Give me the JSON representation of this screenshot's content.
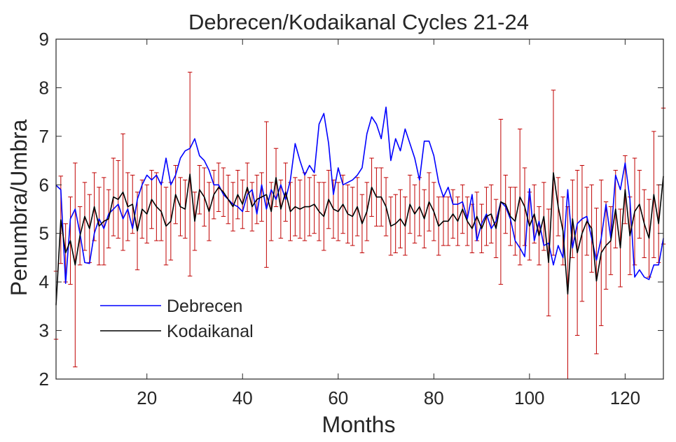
{
  "chart_data": {
    "type": "line",
    "title": "Debrecen/Kodaikanal Cycles 21-24",
    "xlabel": "Months",
    "ylabel": "Penumbra/Umbra",
    "xlim": [
      1,
      128
    ],
    "ylim": [
      2,
      9
    ],
    "xticks": [
      20,
      40,
      60,
      80,
      100,
      120
    ],
    "yticks": [
      2,
      3,
      4,
      5,
      6,
      7,
      8,
      9
    ],
    "legend_position": "lower-left",
    "colors": {
      "debrecen": "#0000ff",
      "kodaikanal": "#000000",
      "errorbar": "#c00000"
    },
    "series": [
      {
        "name": "Debrecen",
        "color": "#0000ff",
        "x": [
          1,
          2,
          3,
          4,
          5,
          6,
          7,
          8,
          9,
          10,
          11,
          12,
          13,
          14,
          15,
          16,
          17,
          18,
          19,
          20,
          21,
          22,
          23,
          24,
          25,
          26,
          27,
          28,
          29,
          30,
          31,
          32,
          33,
          34,
          35,
          36,
          37,
          38,
          39,
          40,
          41,
          42,
          43,
          44,
          45,
          46,
          47,
          48,
          49,
          50,
          51,
          52,
          53,
          54,
          55,
          56,
          57,
          58,
          59,
          60,
          61,
          62,
          63,
          64,
          65,
          66,
          67,
          68,
          69,
          70,
          71,
          72,
          73,
          74,
          75,
          76,
          77,
          78,
          79,
          80,
          81,
          82,
          83,
          84,
          85,
          86,
          87,
          88,
          89,
          90,
          91,
          92,
          93,
          94,
          95,
          96,
          97,
          98,
          99,
          100,
          101,
          102,
          103,
          104,
          105,
          106,
          107,
          108,
          109,
          110,
          111,
          112,
          113,
          114,
          115,
          116,
          117,
          118,
          119,
          120,
          121,
          122,
          123,
          124,
          125,
          126,
          127,
          128
        ],
        "values": [
          5.99,
          5.9,
          3.97,
          5.3,
          5.5,
          5.0,
          4.4,
          4.38,
          5.0,
          5.3,
          5.1,
          5.4,
          5.5,
          5.6,
          5.3,
          5.5,
          5.1,
          5.7,
          6.0,
          6.2,
          6.1,
          6.2,
          6.0,
          6.55,
          6.0,
          6.2,
          6.55,
          6.7,
          6.75,
          6.95,
          6.6,
          6.5,
          6.3,
          6.0,
          6.0,
          5.8,
          5.7,
          5.6,
          5.55,
          5.45,
          5.8,
          5.9,
          5.4,
          6.0,
          5.5,
          5.9,
          5.7,
          6.0,
          5.7,
          6.1,
          6.85,
          6.5,
          6.2,
          6.4,
          6.25,
          7.25,
          7.47,
          6.85,
          5.8,
          6.35,
          6.0,
          6.05,
          6.1,
          6.2,
          6.35,
          7.05,
          7.4,
          7.25,
          6.95,
          7.6,
          6.5,
          6.95,
          6.7,
          7.15,
          6.85,
          6.55,
          6.1,
          6.9,
          6.9,
          6.6,
          6.05,
          5.75,
          5.95,
          5.6,
          5.6,
          5.65,
          5.3,
          5.8,
          4.85,
          5.2,
          5.4,
          5.1,
          5.25,
          5.65,
          5.55,
          5.3,
          4.85,
          4.7,
          4.52,
          5.92,
          4.85,
          5.25,
          4.75,
          4.8,
          4.35,
          4.75,
          4.5,
          5.9,
          4.7,
          5.2,
          5.3,
          5.35,
          4.9,
          4.45,
          4.9,
          5.6,
          4.9,
          6.2,
          5.9,
          6.45,
          5.7,
          4.1,
          4.25,
          4.1,
          4.05,
          4.35,
          4.35,
          4.9
        ]
      },
      {
        "name": "Kodaikanal",
        "color": "#000000",
        "x": [
          1,
          2,
          3,
          4,
          5,
          6,
          7,
          8,
          9,
          10,
          11,
          12,
          13,
          14,
          15,
          16,
          17,
          18,
          19,
          20,
          21,
          22,
          23,
          24,
          25,
          26,
          27,
          28,
          29,
          30,
          31,
          32,
          33,
          34,
          35,
          36,
          37,
          38,
          39,
          40,
          41,
          42,
          43,
          44,
          45,
          46,
          47,
          48,
          49,
          50,
          51,
          52,
          53,
          54,
          55,
          56,
          57,
          58,
          59,
          60,
          61,
          62,
          63,
          64,
          65,
          66,
          67,
          68,
          69,
          70,
          71,
          72,
          73,
          74,
          75,
          76,
          77,
          78,
          79,
          80,
          81,
          82,
          83,
          84,
          85,
          86,
          87,
          88,
          89,
          90,
          91,
          92,
          93,
          94,
          95,
          96,
          97,
          98,
          99,
          100,
          101,
          102,
          103,
          104,
          105,
          106,
          107,
          108,
          109,
          110,
          111,
          112,
          113,
          114,
          115,
          116,
          117,
          118,
          119,
          120,
          121,
          122,
          123,
          124,
          125,
          126,
          127,
          128
        ],
        "values": [
          3.52,
          5.28,
          4.6,
          4.85,
          4.35,
          4.95,
          5.35,
          5.1,
          5.55,
          5.15,
          5.25,
          5.3,
          5.75,
          5.7,
          5.85,
          5.55,
          5.6,
          5.05,
          5.5,
          5.4,
          5.7,
          5.55,
          5.45,
          5.15,
          5.25,
          5.8,
          5.55,
          5.5,
          6.22,
          5.25,
          5.9,
          5.75,
          5.45,
          5.8,
          5.95,
          5.85,
          5.7,
          5.55,
          5.8,
          5.6,
          5.95,
          5.55,
          5.7,
          5.75,
          5.8,
          5.45,
          6.15,
          5.5,
          5.85,
          5.45,
          5.55,
          5.5,
          5.55,
          5.55,
          5.6,
          5.45,
          5.35,
          5.7,
          5.5,
          5.45,
          5.6,
          5.4,
          5.35,
          5.55,
          5.2,
          5.45,
          5.95,
          5.75,
          5.75,
          5.55,
          5.15,
          5.2,
          5.3,
          5.15,
          5.6,
          5.4,
          5.55,
          5.3,
          5.65,
          5.45,
          5.15,
          5.25,
          5.25,
          5.4,
          5.25,
          5.5,
          5.25,
          5.1,
          5.35,
          5.1,
          5.35,
          5.4,
          5.1,
          5.65,
          5.6,
          5.35,
          5.25,
          5.75,
          5.55,
          5.15,
          5.4,
          4.95,
          5.35,
          4.4,
          6.25,
          5.55,
          5.05,
          3.75,
          5.3,
          4.6,
          5.0,
          5.25,
          5.1,
          4.02,
          4.6,
          4.75,
          4.85,
          5.5,
          4.7,
          5.9,
          4.95,
          5.45,
          5.6,
          5.2,
          4.9,
          5.8,
          5.2,
          6.18
        ]
      },
      {
        "name": "Error bar (Kodaikanal)",
        "color": "#c00000",
        "x": [
          1,
          2,
          3,
          4,
          5,
          6,
          7,
          8,
          9,
          10,
          11,
          12,
          13,
          14,
          15,
          16,
          17,
          18,
          19,
          20,
          21,
          22,
          23,
          24,
          25,
          26,
          27,
          28,
          29,
          30,
          31,
          32,
          33,
          34,
          35,
          36,
          37,
          38,
          39,
          40,
          41,
          42,
          43,
          44,
          45,
          46,
          47,
          48,
          49,
          50,
          51,
          52,
          53,
          54,
          55,
          56,
          57,
          58,
          59,
          60,
          61,
          62,
          63,
          64,
          65,
          66,
          67,
          68,
          69,
          70,
          71,
          72,
          73,
          74,
          75,
          76,
          77,
          78,
          79,
          80,
          81,
          82,
          83,
          84,
          85,
          86,
          87,
          88,
          89,
          90,
          91,
          92,
          93,
          94,
          95,
          96,
          97,
          98,
          99,
          100,
          101,
          102,
          103,
          104,
          105,
          106,
          107,
          108,
          109,
          110,
          111,
          112,
          113,
          114,
          115,
          116,
          117,
          118,
          119,
          120,
          121,
          122,
          123,
          124,
          125,
          126,
          127,
          128
        ],
        "errors": [
          0.7,
          0.9,
          0.6,
          0.9,
          2.1,
          0.6,
          0.7,
          0.7,
          0.7,
          0.8,
          0.9,
          0.6,
          0.8,
          0.8,
          1.2,
          0.7,
          0.6,
          0.8,
          0.6,
          0.6,
          0.6,
          0.7,
          0.6,
          0.8,
          0.8,
          0.6,
          0.6,
          0.6,
          2.1,
          0.6,
          0.5,
          0.6,
          0.6,
          0.5,
          0.5,
          0.5,
          0.5,
          0.5,
          0.5,
          0.5,
          0.5,
          0.5,
          0.5,
          0.5,
          1.5,
          0.6,
          0.6,
          0.6,
          0.6,
          0.6,
          0.6,
          0.6,
          0.7,
          0.6,
          0.6,
          0.6,
          0.7,
          0.6,
          0.6,
          0.6,
          0.6,
          0.6,
          0.6,
          0.6,
          0.6,
          0.6,
          0.6,
          0.6,
          0.6,
          0.6,
          0.6,
          0.6,
          0.6,
          0.6,
          0.6,
          0.6,
          0.6,
          0.6,
          0.6,
          0.6,
          0.6,
          0.5,
          0.5,
          0.5,
          0.5,
          0.5,
          0.5,
          0.5,
          0.5,
          0.5,
          0.6,
          0.6,
          0.6,
          1.7,
          0.6,
          0.6,
          0.7,
          1.4,
          0.8,
          0.7,
          0.6,
          0.6,
          0.7,
          1.1,
          1.7,
          0.6,
          0.7,
          1.8,
          0.8,
          1.7,
          1.4,
          0.7,
          0.9,
          1.5,
          1.5,
          0.9,
          0.7,
          0.8,
          0.8,
          0.7,
          0.8,
          1.1,
          0.7,
          0.7,
          0.8,
          1.3,
          0.8,
          1.4
        ]
      }
    ]
  }
}
